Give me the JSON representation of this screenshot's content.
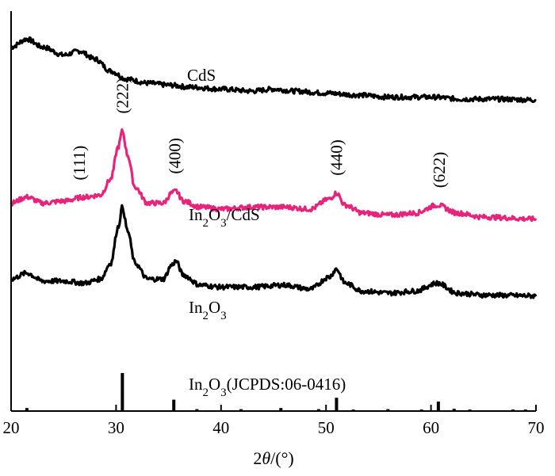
{
  "chart_data": {
    "type": "line",
    "title": "",
    "xlabel": "2θ/(°)",
    "ylabel": "",
    "xlim": [
      20,
      70
    ],
    "xticks": [
      20,
      30,
      40,
      50,
      60,
      70
    ],
    "grid": false,
    "legend": "none",
    "series": [
      {
        "name": "CdS",
        "color": "#000000",
        "x": [
          20,
          21.5,
          23,
          25,
          26.5,
          28,
          29.5,
          31,
          33,
          35,
          37,
          40,
          43,
          45,
          47,
          50,
          53,
          56,
          60,
          63,
          66,
          70
        ],
        "y": [
          0.91,
          0.93,
          0.91,
          0.89,
          0.9,
          0.88,
          0.85,
          0.83,
          0.82,
          0.815,
          0.81,
          0.805,
          0.8,
          0.805,
          0.8,
          0.795,
          0.79,
          0.785,
          0.785,
          0.78,
          0.78,
          0.778
        ]
      },
      {
        "name": "In2O3/CdS",
        "color": "#e8237a",
        "x": [
          20,
          21.5,
          23,
          25,
          27,
          28.5,
          29.5,
          30.2,
          30.6,
          31.1,
          31.8,
          33,
          34.5,
          35.3,
          35.7,
          36.4,
          38,
          40,
          43,
          46,
          48.5,
          50.3,
          51,
          51.8,
          53.5,
          56,
          58.5,
          60.6,
          62.5,
          65,
          70
        ],
        "y": [
          0.52,
          0.535,
          0.52,
          0.525,
          0.535,
          0.54,
          0.58,
          0.66,
          0.7,
          0.64,
          0.56,
          0.52,
          0.52,
          0.545,
          0.55,
          0.525,
          0.51,
          0.505,
          0.51,
          0.51,
          0.505,
          0.53,
          0.545,
          0.515,
          0.495,
          0.49,
          0.495,
          0.515,
          0.495,
          0.485,
          0.48
        ]
      },
      {
        "name": "In2O3",
        "color": "#000000",
        "x": [
          20,
          21.5,
          23,
          25,
          27,
          28.5,
          29.5,
          30.2,
          30.6,
          31.1,
          31.8,
          33,
          34.5,
          35.3,
          35.7,
          36.4,
          38,
          40,
          43,
          46,
          48.5,
          50.3,
          51,
          51.8,
          53.5,
          56,
          58.5,
          60.6,
          62.5,
          65,
          70
        ],
        "y": [
          0.33,
          0.345,
          0.325,
          0.325,
          0.32,
          0.33,
          0.37,
          0.46,
          0.51,
          0.45,
          0.37,
          0.33,
          0.33,
          0.365,
          0.375,
          0.34,
          0.315,
          0.31,
          0.31,
          0.315,
          0.305,
          0.335,
          0.355,
          0.32,
          0.3,
          0.295,
          0.3,
          0.32,
          0.295,
          0.29,
          0.288
        ]
      }
    ],
    "reference": {
      "name": "In2O3(JCPDS:06-0416)",
      "positions": [
        21.5,
        30.6,
        35.5,
        37.7,
        41.9,
        45.7,
        49.3,
        51.0,
        52.6,
        55.9,
        59.1,
        60.7,
        62.2,
        63.7,
        67.8,
        69.0
      ],
      "intensities": [
        0.08,
        1.0,
        0.3,
        0.05,
        0.05,
        0.08,
        0.05,
        0.35,
        0.04,
        0.05,
        0.04,
        0.25,
        0.06,
        0.04,
        0.04,
        0.04
      ]
    },
    "annotations": [
      {
        "text": "(111)",
        "x": 26.5,
        "series": "In2O3/CdS"
      },
      {
        "text": "(222)",
        "x": 30.6,
        "series": "In2O3/CdS"
      },
      {
        "text": "(400)",
        "x": 35.6,
        "series": "In2O3/CdS"
      },
      {
        "text": "(440)",
        "x": 51.0,
        "series": "In2O3/CdS"
      },
      {
        "text": "(622)",
        "x": 60.8,
        "series": "In2O3/CdS"
      }
    ],
    "series_labels": [
      {
        "key": "cds",
        "base": "CdS",
        "series": "CdS"
      },
      {
        "key": "composite",
        "base": "In",
        "sub1": "2",
        "mid": "O",
        "sub2": "3",
        "suffix": "/CdS",
        "series": "In2O3/CdS"
      },
      {
        "key": "in2o3",
        "base": "In",
        "sub1": "2",
        "mid": "O",
        "sub2": "3",
        "suffix": "",
        "series": "In2O3"
      },
      {
        "key": "reference",
        "base": "In",
        "sub1": "2",
        "mid": "O",
        "sub2": "3",
        "suffix": "(JCPDS:06-0416)",
        "series": "reference"
      }
    ]
  }
}
